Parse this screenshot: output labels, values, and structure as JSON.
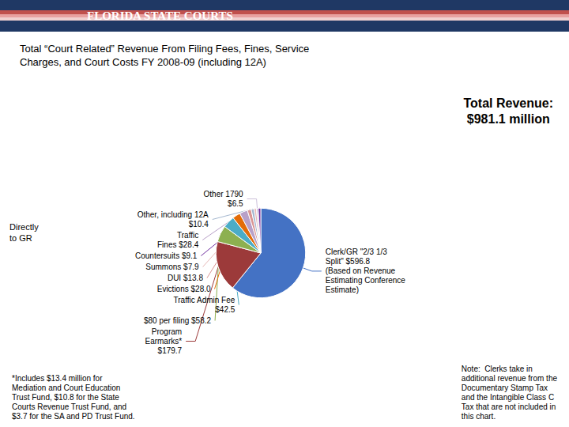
{
  "chart_data": {
    "type": "pie",
    "title": "Total “Court Related” Revenue From Filing Fees, Fines, Service\nCharges, and Court Costs FY 2008-09 (including 12A)",
    "categories": [
      "Clerk/GR \"2/3 1/3\nSplit\" $596.8\n(Based on Revenue\nEstimating Conference\nEstimate)",
      "Program\nEarmarks*\n$179.7",
      "$80 per filing $58.2",
      "Traffic Admin Fee\n$42.5",
      "Evictions $28.0",
      "Traffic\nFines $28.4",
      "DUI $13.8",
      "Other, including 12A\n$10.4",
      "Summons $7.9",
      "Other 1790\n$6.5",
      "Countersuits $9.1"
    ],
    "values": [
      596.8,
      179.7,
      58.2,
      42.5,
      28.0,
      28.4,
      13.8,
      10.4,
      7.9,
      6.5,
      9.1
    ],
    "colors": [
      "#4472C4",
      "#9C3A3A",
      "#8DB050",
      "#4BACC6",
      "#E36C09",
      "#B8A0C8",
      "#DA9694",
      "#A5B8D0",
      "#E6B8B7",
      "#CCC0DA",
      "#7030A0"
    ],
    "annotations": [
      "FLORIDA STATE COURTS",
      "Total Revenue:\n$981.1 million",
      "Directly\nto GR",
      "*Includes $13.4 million for\nMediation and Court Education\nTrust Fund, $10.8 for the State\nCourts Revenue Trust Fund, and\n$3.7 for the SA and PD Trust Fund.",
      "Note:  Clerks take in\nadditional revenue from the\nDocumentary Stamp Tax\nand the Intangible Class C\nTax that are not included in\nthis chart."
    ]
  }
}
